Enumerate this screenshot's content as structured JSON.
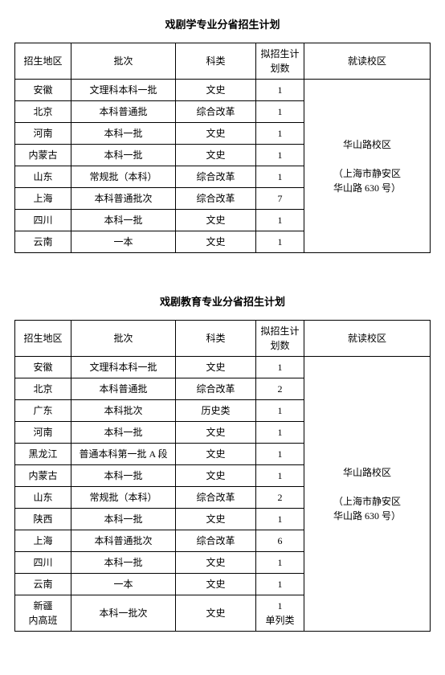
{
  "table1": {
    "title": "戏剧学专业分省招生计划",
    "headers": [
      "招生地区",
      "批次",
      "科类",
      "拟招生计划数",
      "就读校区"
    ],
    "rows": [
      {
        "region": "安徽",
        "batch": "文理科本科一批",
        "subject": "文史",
        "count": "1"
      },
      {
        "region": "北京",
        "batch": "本科普通批",
        "subject": "综合改革",
        "count": "1"
      },
      {
        "region": "河南",
        "batch": "本科一批",
        "subject": "文史",
        "count": "1"
      },
      {
        "region": "内蒙古",
        "batch": "本科一批",
        "subject": "文史",
        "count": "1"
      },
      {
        "region": "山东",
        "batch": "常规批（本科）",
        "subject": "综合改革",
        "count": "1"
      },
      {
        "region": "上海",
        "batch": "本科普通批次",
        "subject": "综合改革",
        "count": "7"
      },
      {
        "region": "四川",
        "batch": "本科一批",
        "subject": "文史",
        "count": "1"
      },
      {
        "region": "云南",
        "batch": "一本",
        "subject": "文史",
        "count": "1"
      }
    ],
    "campus": {
      "line1": "华山路校区",
      "line2": "（上海市静安区",
      "line3": "华山路 630 号）"
    }
  },
  "table2": {
    "title": "戏剧教育专业分省招生计划",
    "headers": [
      "招生地区",
      "批次",
      "科类",
      "拟招生计划数",
      "就读校区"
    ],
    "rows": [
      {
        "region": "安徽",
        "batch": "文理科本科一批",
        "subject": "文史",
        "count": "1"
      },
      {
        "region": "北京",
        "batch": "本科普通批",
        "subject": "综合改革",
        "count": "2"
      },
      {
        "region": "广东",
        "batch": "本科批次",
        "subject": "历史类",
        "count": "1"
      },
      {
        "region": "河南",
        "batch": "本科一批",
        "subject": "文史",
        "count": "1"
      },
      {
        "region": "黑龙江",
        "batch": "普通本科第一批 A 段",
        "subject": "文史",
        "count": "1"
      },
      {
        "region": "内蒙古",
        "batch": "本科一批",
        "subject": "文史",
        "count": "1"
      },
      {
        "region": "山东",
        "batch": "常规批（本科）",
        "subject": "综合改革",
        "count": "2"
      },
      {
        "region": "陕西",
        "batch": "本科一批",
        "subject": "文史",
        "count": "1"
      },
      {
        "region": "上海",
        "batch": "本科普通批次",
        "subject": "综合改革",
        "count": "6"
      },
      {
        "region": "四川",
        "batch": "本科一批",
        "subject": "文史",
        "count": "1"
      },
      {
        "region": "云南",
        "batch": "一本",
        "subject": "文史",
        "count": "1"
      }
    ],
    "lastRow": {
      "region_l1": "新疆",
      "region_l2": "内高班",
      "batch": "本科一批次",
      "subject": "文史",
      "count_l1": "1",
      "count_l2": "单列类"
    },
    "campus": {
      "line1": "华山路校区",
      "line2": "（上海市静安区",
      "line3": "华山路 630 号）"
    }
  }
}
